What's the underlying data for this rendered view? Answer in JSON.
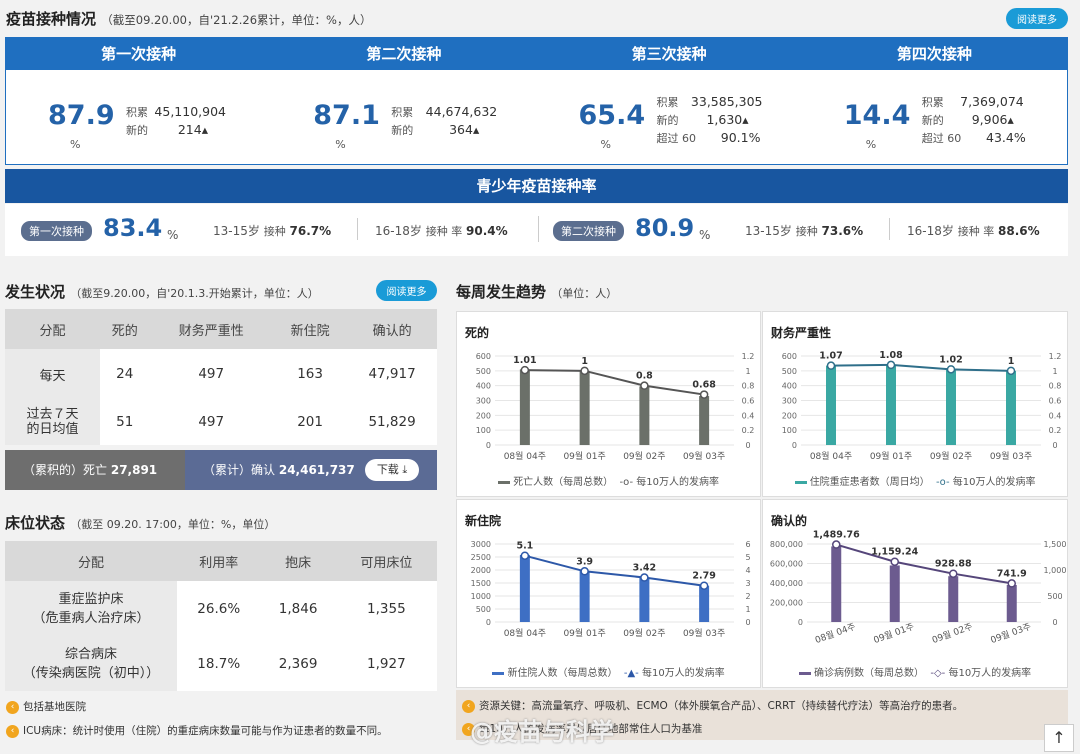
{
  "vaccine": {
    "title": "疫苗接种情况",
    "subtitle": "（截至09.20.00，自'21.2.26累计，单位：%，人）",
    "more": "阅读更多",
    "doses": [
      {
        "label": "第一次接种",
        "rate": "87.9",
        "unit": "%",
        "rows": [
          {
            "k": "积累",
            "v": "45,110,904"
          },
          {
            "k": "新的",
            "v": "214▴"
          }
        ]
      },
      {
        "label": "第二次接种",
        "rate": "87.1",
        "unit": "%",
        "rows": [
          {
            "k": "积累",
            "v": "44,674,632"
          },
          {
            "k": "新的",
            "v": "364▴"
          }
        ]
      },
      {
        "label": "第三次接种",
        "rate": "65.4",
        "unit": "%",
        "rows": [
          {
            "k": "积累",
            "v": "33,585,305"
          },
          {
            "k": "新的",
            "v": "1,630▴"
          },
          {
            "k": "超过 60",
            "v": "90.1%"
          }
        ]
      },
      {
        "label": "第四次接种",
        "rate": "14.4",
        "unit": "%",
        "rows": [
          {
            "k": "积累",
            "v": "7,369,074"
          },
          {
            "k": "新的",
            "v": "9,906▴"
          },
          {
            "k": "超过 60",
            "v": "43.4%"
          }
        ]
      }
    ],
    "youth": {
      "title": "青少年疫苗接种率",
      "groups": [
        {
          "pill": "第一次接种",
          "rate": "83.4",
          "unit": "%",
          "a_age": "13-15岁",
          "a_lbl": "接种",
          "a_val": "76.7%",
          "b_age": "16-18岁",
          "b_lbl": "接种 率",
          "b_val": "90.4%"
        },
        {
          "pill": "第二次接种",
          "rate": "80.9",
          "unit": "%",
          "a_age": "13-15岁",
          "a_lbl": "接种",
          "a_val": "73.6%",
          "b_age": "16-18岁",
          "b_lbl": "接种 率",
          "b_val": "88.6%"
        }
      ]
    }
  },
  "occurrence": {
    "title": "发生状况",
    "subtitle": "（截至9.20.00，自'20.1.3.开始累计，单位：人）",
    "more": "阅读更多",
    "headers": [
      "分配",
      "死的",
      "财务严重性",
      "新住院",
      "确认的"
    ],
    "rows": [
      [
        "每天",
        "24",
        "497",
        "163",
        "47,917"
      ],
      [
        "过去７天\n的日均值",
        "51",
        "497",
        "201",
        "51,829"
      ]
    ],
    "total_death_label": "（累积的）死亡",
    "total_death": "27,891",
    "total_conf_label": "（累计）确认",
    "total_conf": "24,461,737",
    "download": "下载"
  },
  "beds": {
    "title": "床位状态",
    "subtitle": "（截至 09.20. 17:00，单位：%，单位）",
    "headers": [
      "分配",
      "利用率",
      "抱床",
      "可用床位"
    ],
    "rows": [
      [
        "重症监护床\n（危重病人治疗床）",
        "26.6%",
        "1,846",
        "1,355"
      ],
      [
        "综合病床\n（传染病医院（初中））",
        "18.7%",
        "2,369",
        "1,927"
      ]
    ],
    "notes": [
      "包括基地医院",
      "ICU病床：统计时使用（住院）的重症病床数量可能与作为证患者的数量不同。"
    ]
  },
  "weekly": {
    "title": "每周发生趋势",
    "subtitle": "（单位：人）",
    "footnote1": "资源关键：高流量氧疗、呼吸机、ECMO（体外膜氧合产品）、CRRT（持续替代疗法）等高治疗的患者。",
    "footnote2": "每10万人的发病率是以居住地部常住人口为基准",
    "watermark": "@疫苗与科学"
  },
  "chart_data": [
    {
      "type": "bar",
      "title": "死的",
      "categories": [
        "08월 04주",
        "09월 01주",
        "09월 02주",
        "09월 03주"
      ],
      "yleft": [
        0,
        100,
        200,
        300,
        400,
        500,
        600
      ],
      "yright": [
        "0",
        "0.2",
        "0.4",
        "0.6",
        "0.8",
        "1",
        "1.2"
      ],
      "ylim": [
        0,
        600
      ],
      "ylim2": [
        0,
        1.2
      ],
      "series": [
        {
          "name": "死亡人数（每周总数）",
          "values": [
            510,
            500,
            395,
            330
          ],
          "color": "#6b7069"
        },
        {
          "name": "每10万人的发病率",
          "values": [
            1.01,
            1,
            0.8,
            0.68
          ],
          "labels": [
            "1.01",
            "1",
            "0.8",
            "0.68"
          ],
          "color": "#555"
        }
      ]
    },
    {
      "type": "bar",
      "title": "财务严重性",
      "categories": [
        "08월 04주",
        "09월 01주",
        "09월 02주",
        "09월 03주"
      ],
      "yleft": [
        0,
        100,
        200,
        300,
        400,
        500,
        600
      ],
      "yright": [
        "0",
        "0.2",
        "0.4",
        "0.6",
        "0.8",
        "1",
        "1.2"
      ],
      "ylim": [
        0,
        600
      ],
      "ylim2": [
        0,
        1.2
      ],
      "series": [
        {
          "name": "住院重症患者数（周日均）",
          "values": [
            535,
            540,
            510,
            500
          ],
          "color": "#3aa8a3"
        },
        {
          "name": "每10万人的发病率",
          "values": [
            1.07,
            1.08,
            1.02,
            1
          ],
          "labels": [
            "1.07",
            "1.08",
            "1.02",
            "1"
          ],
          "color": "#2f6f8a"
        }
      ]
    },
    {
      "type": "bar",
      "title": "新住院",
      "categories": [
        "08월 04주",
        "09월 01주",
        "09월 02주",
        "09월 03주"
      ],
      "yleft": [
        0,
        500,
        1000,
        1500,
        2000,
        2500,
        3000
      ],
      "yright": [
        "0",
        "1",
        "2",
        "3",
        "4",
        "5",
        "6"
      ],
      "ylim": [
        0,
        3000
      ],
      "ylim2": [
        0,
        6
      ],
      "series": [
        {
          "name": "新住院人数（每周总数）",
          "values": [
            2580,
            1960,
            1720,
            1395
          ],
          "color": "#3e6fc4"
        },
        {
          "name": "每10万人的发病率",
          "values": [
            5.1,
            3.9,
            3.42,
            2.79
          ],
          "labels": [
            "5.1",
            "3.9",
            "3.42",
            "2.79"
          ],
          "color": "#2d58a8"
        }
      ]
    },
    {
      "type": "bar",
      "title": "确认的",
      "categories": [
        "08월 04주",
        "09월 01주",
        "09월 02주",
        "09월 03주"
      ],
      "yleft": [
        0,
        200000,
        400000,
        600000,
        800000
      ],
      "yleftLabels": [
        "0",
        "200,000",
        "400,000",
        "600,000",
        "800,000"
      ],
      "yright": [
        "0",
        "500",
        "1,000",
        "1,500"
      ],
      "ylim": [
        0,
        800000
      ],
      "ylim2": [
        0,
        1500
      ],
      "series": [
        {
          "name": "确诊病例数（每周总数）",
          "values": [
            775000,
            580000,
            470000,
            380000
          ],
          "color": "#6c5b8f"
        },
        {
          "name": "每10万人的发病率",
          "values": [
            1489.76,
            1159.24,
            928.88,
            741.9
          ],
          "labels": [
            "1,489.76",
            "1,159.24",
            "928.88",
            "741.9"
          ],
          "color": "#55467a"
        }
      ]
    }
  ]
}
